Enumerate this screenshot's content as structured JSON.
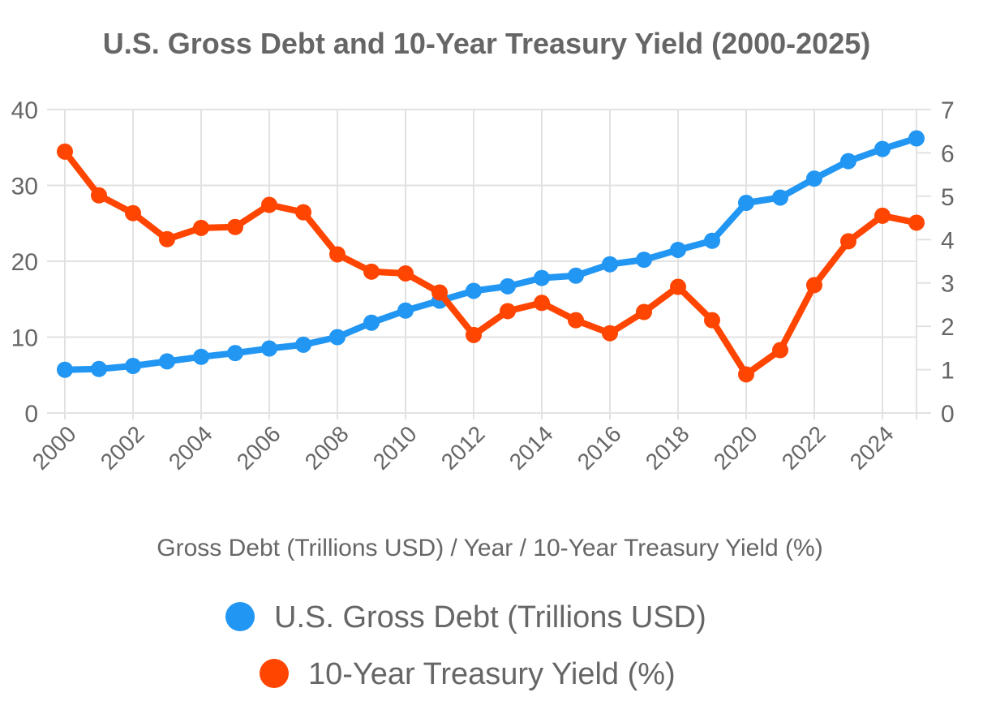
{
  "chart_data": {
    "type": "line",
    "title": "U.S. Gross Debt and 10-Year Treasury Yield (2000-2025)",
    "xlabel": "Gross Debt (Trillions USD) / Year / 10-Year Treasury Yield (%)",
    "categories": [
      2000,
      2001,
      2002,
      2003,
      2004,
      2005,
      2006,
      2007,
      2008,
      2009,
      2010,
      2011,
      2012,
      2013,
      2014,
      2015,
      2016,
      2017,
      2018,
      2019,
      2020,
      2021,
      2022,
      2023,
      2024,
      2025
    ],
    "x_tick_labels": [
      "2000",
      "2002",
      "2004",
      "2006",
      "2008",
      "2010",
      "2012",
      "2014",
      "2016",
      "2018",
      "2020",
      "2022",
      "2024"
    ],
    "y_left": {
      "ylim": [
        0,
        40
      ],
      "ticks": [
        "0",
        "10",
        "20",
        "30",
        "40"
      ]
    },
    "y_right": {
      "ylim": [
        0,
        7
      ],
      "ticks": [
        "0",
        "1",
        "2",
        "3",
        "4",
        "5",
        "6",
        "7"
      ]
    },
    "grid": true,
    "legend_position": "bottom",
    "series": [
      {
        "name": "U.S. Gross Debt (Trillions USD)",
        "axis": "left",
        "color": "#2196F3",
        "values": [
          5.7,
          5.8,
          6.2,
          6.8,
          7.4,
          7.9,
          8.5,
          9.0,
          10.0,
          11.9,
          13.5,
          14.8,
          16.1,
          16.7,
          17.8,
          18.1,
          19.6,
          20.2,
          21.5,
          22.7,
          27.7,
          28.4,
          30.9,
          33.2,
          34.8,
          36.2
        ]
      },
      {
        "name": "10-Year Treasury Yield (%)",
        "axis": "right",
        "color": "#FF4500",
        "values": [
          6.03,
          5.02,
          4.61,
          4.01,
          4.27,
          4.29,
          4.8,
          4.63,
          3.66,
          3.26,
          3.22,
          2.78,
          1.8,
          2.35,
          2.54,
          2.14,
          1.84,
          2.33,
          2.91,
          2.14,
          0.89,
          1.45,
          2.95,
          3.96,
          4.55,
          4.39
        ]
      }
    ]
  }
}
